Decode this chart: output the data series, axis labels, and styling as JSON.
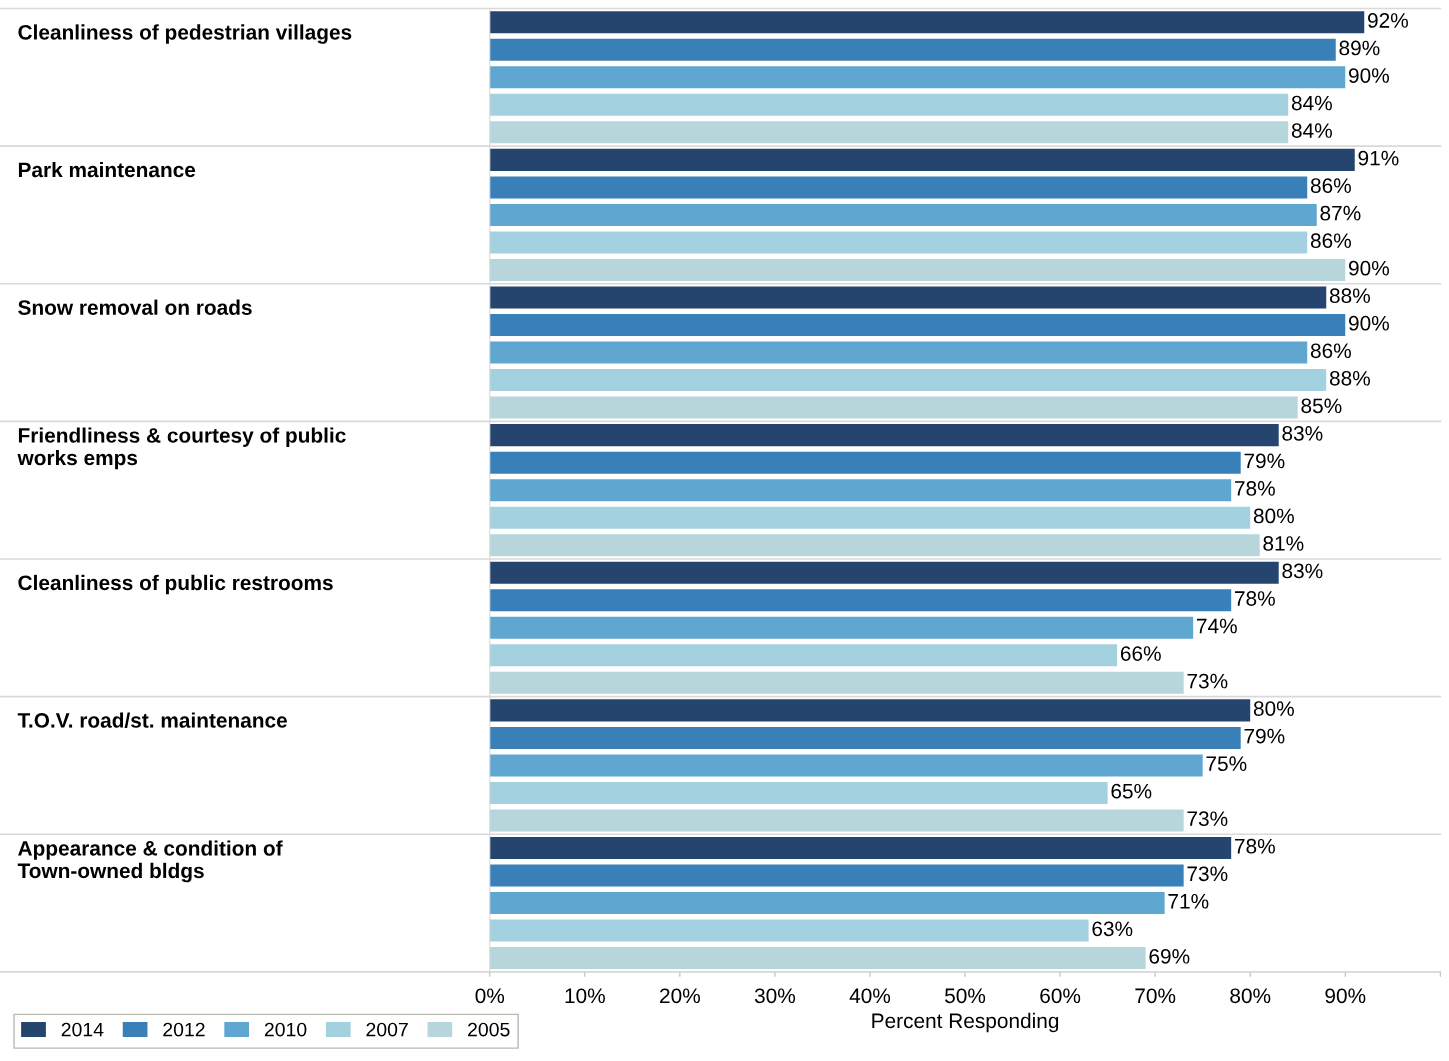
{
  "chart_data": {
    "type": "bar",
    "orientation": "horizontal",
    "categories": [
      "Cleanliness of pedestrian villages",
      "Park maintenance",
      "Snow removal on roads",
      "Friendliness & courtesy of public\nworks emps",
      "Cleanliness of public restrooms",
      "T.O.V. road/st. maintenance",
      "Appearance & condition of\nTown-owned bldgs"
    ],
    "series": [
      {
        "name": "2014",
        "color": "#26456e",
        "values": [
          92,
          91,
          88,
          83,
          83,
          80,
          78
        ],
        "value_labels": [
          "92%",
          "91%",
          "88%",
          "83%",
          "83%",
          "80%",
          "78%"
        ]
      },
      {
        "name": "2012",
        "color": "#3a80b8",
        "values": [
          89,
          86,
          90,
          79,
          78,
          79,
          73
        ],
        "value_labels": [
          "89%",
          "86%",
          "90%",
          "79%",
          "78%",
          "79%",
          "73%"
        ]
      },
      {
        "name": "2010",
        "color": "#5fa6d1",
        "values": [
          90,
          87,
          86,
          78,
          74,
          75,
          71
        ],
        "value_labels": [
          "90%",
          "87%",
          "86%",
          "78%",
          "74%",
          "75%",
          "71%"
        ]
      },
      {
        "name": "2007",
        "color": "#a3d1e0",
        "values": [
          84,
          86,
          88,
          80,
          66,
          65,
          63
        ],
        "value_labels": [
          "84%",
          "86%",
          "88%",
          "80%",
          "66%",
          "65%",
          "63%"
        ]
      },
      {
        "name": "2005",
        "color": "#b6d6dc",
        "values": [
          84,
          90,
          85,
          81,
          73,
          73,
          69
        ],
        "value_labels": [
          "84%",
          "90%",
          "85%",
          "81%",
          "73%",
          "73%",
          "69%"
        ]
      }
    ],
    "xlabel": "Percent Responding",
    "xlim": [
      0,
      100
    ],
    "xticks": [
      {
        "value": 0,
        "label": "0%"
      },
      {
        "value": 10,
        "label": "10%"
      },
      {
        "value": 20,
        "label": "20%"
      },
      {
        "value": 30,
        "label": "30%"
      },
      {
        "value": 40,
        "label": "40%"
      },
      {
        "value": 50,
        "label": "50%"
      },
      {
        "value": 60,
        "label": "60%"
      },
      {
        "value": 70,
        "label": "70%"
      },
      {
        "value": 80,
        "label": "80%"
      },
      {
        "value": 90,
        "label": "90%"
      },
      {
        "value": 100,
        "label": null
      }
    ],
    "legend": "bottom left",
    "grid": false
  }
}
